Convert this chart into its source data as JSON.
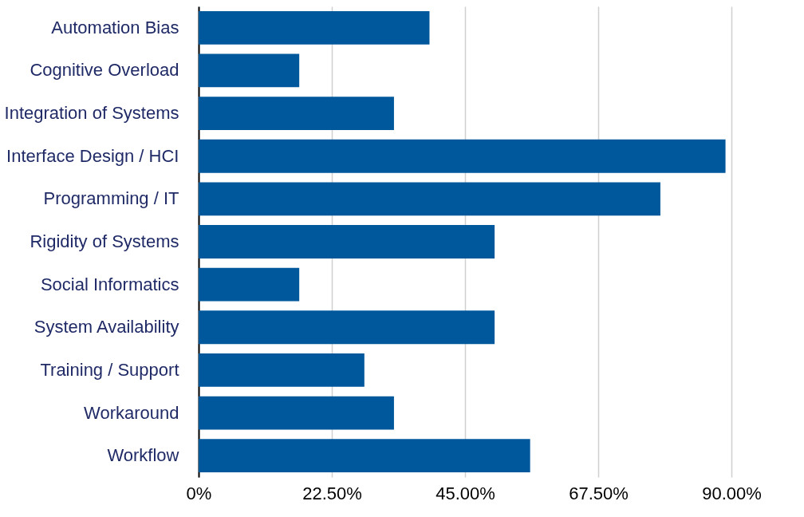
{
  "chart_data": {
    "type": "bar",
    "orientation": "horizontal",
    "categories": [
      "Automation Bias",
      "Cognitive Overload",
      "Integration of Systems",
      "Interface Design / HCI",
      "Programming / IT",
      "Rigidity of Systems",
      "Social Informatics",
      "System Availability ",
      "Training / Support",
      "Workaround",
      "Workflow"
    ],
    "values": [
      39,
      17,
      33,
      89,
      78,
      50,
      17,
      50,
      28,
      33,
      56
    ],
    "color": "#00589c",
    "xlim": [
      0,
      90
    ],
    "xticks": [
      {
        "value": 0,
        "label": "0%"
      },
      {
        "value": 22.5,
        "label": "22.50%"
      },
      {
        "value": 45,
        "label": "45.00%"
      },
      {
        "value": 67.5,
        "label": "67.50%"
      },
      {
        "value": 90,
        "label": "90.00%"
      }
    ],
    "grid": "x"
  }
}
